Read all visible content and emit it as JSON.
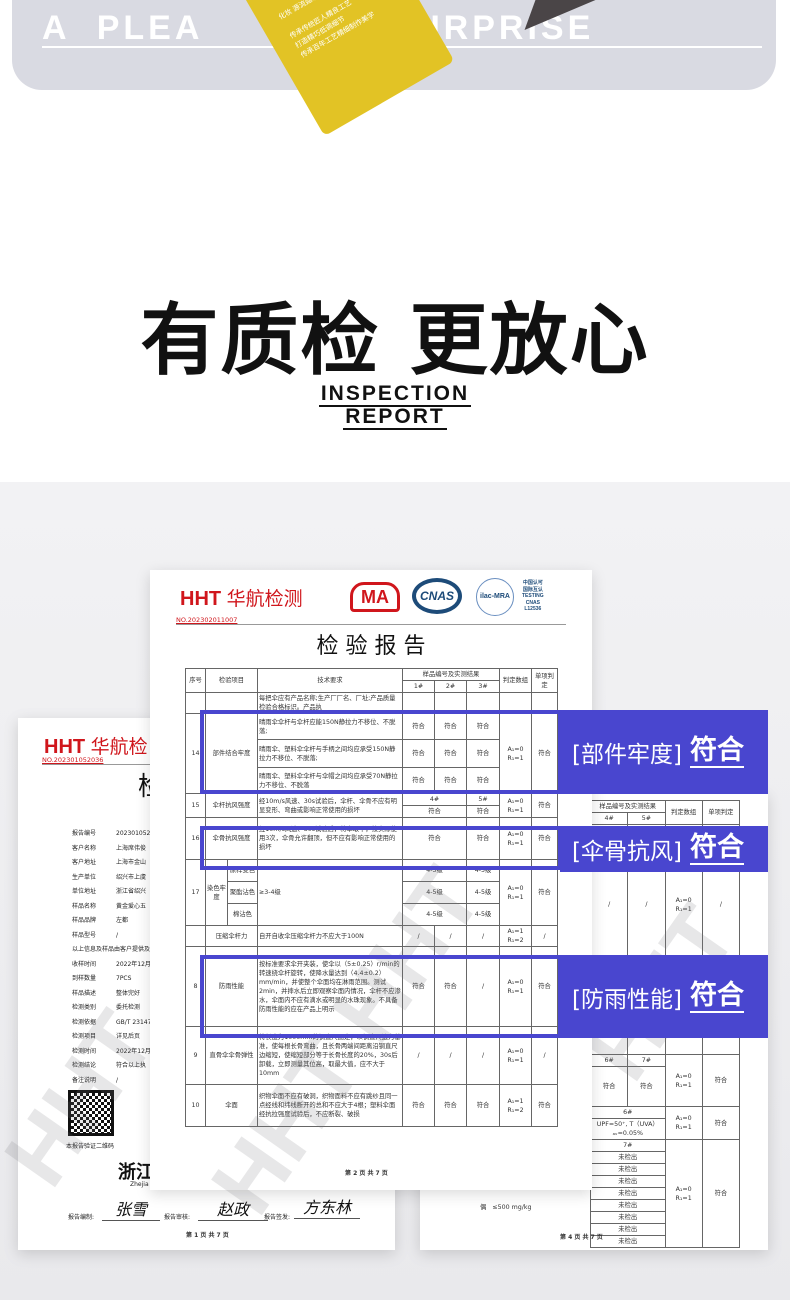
{
  "banner": {
    "text": "A PLEASANT SURPRISE",
    "text_left": "A PLEA",
    "text_right": "SURPRISE",
    "card_lines": [
      "化妆 源流延水",
      "传承传统匠人精良工艺",
      "打造精巧低调细节",
      "传承百年工艺精细制作美学"
    ],
    "colors": {
      "banner": "#d9dae2",
      "card": "#e2c325"
    }
  },
  "heading": {
    "title": "有质检 更放心",
    "subtitle_1": "INSPECTION",
    "subtitle_2": "REPORT"
  },
  "report_main": {
    "brand": "HHT",
    "brand_cn": "华航检测",
    "logos": [
      "MA",
      "CNAS",
      "ilac-MRA"
    ],
    "cnas_text": [
      "中国认可",
      "国际互认",
      "TESTING",
      "CNAS",
      "L12536"
    ],
    "number": "NO.202302011007",
    "title": "检 验 报 告",
    "headers": {
      "seq": "序号",
      "item": "检验项目",
      "req": "技术要求",
      "samples": "样品编号及实测结果",
      "s1": "1#",
      "s2": "2#",
      "s3": "3#",
      "group": "判定数组",
      "single": "单项判定"
    },
    "rows": {
      "r13": {
        "req": "每把伞应有产品名称;生产厂厂名、厂址;产品质量检验合格标识。产品执"
      },
      "r14": {
        "seq": "14",
        "item": "部件结合牢度",
        "req_a": "晴雨伞伞杆与伞杆应能150N静拉力不移位、不脱落;",
        "req_b": "晴雨伞、塑料伞伞杆与手柄之间均应承受150N静拉力不移位、不脱落;",
        "req_c": "晴雨伞、塑料伞伞杆与伞帽之间均应承受70N静拉力不移位、不脱落",
        "v": "符合",
        "group": "A₁=0 R₁=1",
        "single": "符合"
      },
      "r15": {
        "seq": "15",
        "item": "伞杆抗风强度",
        "req": "经10m/s风速、30s试验后，伞杆、伞骨不应有明显变形、弯曲或影响正常使用的损坏",
        "s4": "4#",
        "s5": "5#",
        "v": "符合",
        "group": "A₁=0 R₁=1",
        "single": "符合"
      },
      "r16": {
        "seq": "16",
        "item": "伞骨抗风强度",
        "req": "经10m/s风速、30s试验后，将伞取下，按实际使用3次，伞骨允许翻顶，但不应有影响正常使用的损坏",
        "v": "符合",
        "group": "A₁=0 R₁=1",
        "single": "符合"
      },
      "r17": {
        "seq": "17",
        "item": "染色牢度",
        "sub": [
          "原样变色",
          "聚酯沾色",
          "棉沾色"
        ],
        "req": "≥3-4级",
        "v": "4-5级",
        "group": "A₁=0 R₁=1",
        "single": "符合"
      },
      "rc": {
        "item": "压缩伞杆力",
        "req": "自开自收伞压缩伞杆力不应大于100N",
        "v": "/",
        "group": "A₁=1 R₁=2",
        "single": "/"
      },
      "r8": {
        "seq": "8",
        "item": "防雨性能",
        "req": "按标准要求伞开夹装，使伞以（5±0.25）r/min的转速绕伞杆旋转，使降水量达到（4.4±0.2）mm/min，并使整个伞面均在淋雨范围。测试2min，并摔水后立即观察伞面内情况，伞杆不应渗水，伞面内不应有滴水或明显的水珠现象。不具备防雨性能的应在产品上明示",
        "v1": "符合",
        "v2": "符合",
        "v3": "/",
        "group": "A₁=0 R₁=1",
        "single": "符合"
      },
      "r9": {
        "seq": "9",
        "item": "直骨伞伞骨弹性",
        "req": "将长度为1000mm的钢直尺固定，以钢直尺边为基准，使每根长骨弯曲，且长骨两端间距离沿钢直尺边缩短，使缩短部分等于长骨长度的20%，30s后卸载，立即测量其位高，取最大值，应不大于10mm",
        "v": "/",
        "group": "A₁=0 R₁=1",
        "single": "/"
      },
      "r10": {
        "seq": "10",
        "item": "伞面",
        "req": "织物伞面不应有破洞，织物面料不应有跳纱且同一点经线和纬线断开的总和不应大于4根；塑料伞面经抗拉强度试验后，不应断裂、破损",
        "v": "符合",
        "group": "A₁=1 R₁=2",
        "single": "符合"
      }
    },
    "page": "第 2 页 共 7 页"
  },
  "report_left": {
    "brand": "HHT",
    "brand_cn": "华航检",
    "number": "NO.202301052036",
    "title_partial": "检",
    "fields": [
      {
        "label": "报告编号",
        "value": "2023010520"
      },
      {
        "label": "客户名称",
        "value": "上海席伟俊"
      },
      {
        "label": "客户地址",
        "value": "上海市金山"
      },
      {
        "label": "生产单位",
        "value": "绍兴市上虞"
      },
      {
        "label": "单位地址",
        "value": "浙江省绍兴"
      },
      {
        "label": "样品名称",
        "value": "黄金爱心五"
      },
      {
        "label": "样品品牌",
        "value": "左都"
      },
      {
        "label": "样品型号",
        "value": "/"
      },
      {
        "label": "以上信息及样品由客户提供及",
        "value": ""
      },
      {
        "label": "收样时间",
        "value": "2022年12月"
      },
      {
        "label": "到样数量",
        "value": "7PCS"
      },
      {
        "label": "样品描述",
        "value": "整体完好"
      },
      {
        "label": "检测类别",
        "value": "委托检测"
      },
      {
        "label": "检测依据",
        "value": "GB/T 23147-"
      },
      {
        "label": "检测项目",
        "value": "详见后页"
      },
      {
        "label": "检测时间",
        "value": "2022年12月"
      },
      {
        "label": "检测结论",
        "value": "符合以上执"
      },
      {
        "label": "备注说明",
        "value": "/"
      }
    ],
    "qr_caption": "本报告验证二维码",
    "org_partial": "浙江华",
    "org_en_partial": "Zhejia",
    "sign_labels": [
      "报告编制:",
      "报告审核:",
      "报告签发:"
    ],
    "signatures": [
      "张雪",
      "赵政",
      "方东林"
    ],
    "page": "第 1 页 共 7 页"
  },
  "report_right": {
    "headers": {
      "samples": "样品编号及实测结果",
      "s4": "4#",
      "s5": "5#",
      "group": "判定数组",
      "single": "单项判定"
    },
    "cells": {
      "slash": "/",
      "g1": "A₁=0 R₁=1",
      "s6": "6#",
      "s7": "7#",
      "v": "符合",
      "upf": "UPF=50⁺, T（UVA）ₐᵥ=0.05%",
      "undetected": "未检出",
      "formaldehyde": "≤500 mg/kg",
      "dye": "偶"
    },
    "page": "第 4 页 共 7 页"
  },
  "callouts": [
    {
      "label": "[部件牢度]",
      "result": "符合"
    },
    {
      "label": "[伞骨抗风]",
      "result": "符合"
    },
    {
      "label": "[防雨性能]",
      "result": "符合"
    }
  ],
  "colors": {
    "accent": "#4946cf",
    "brand_red": "#d0161c"
  }
}
